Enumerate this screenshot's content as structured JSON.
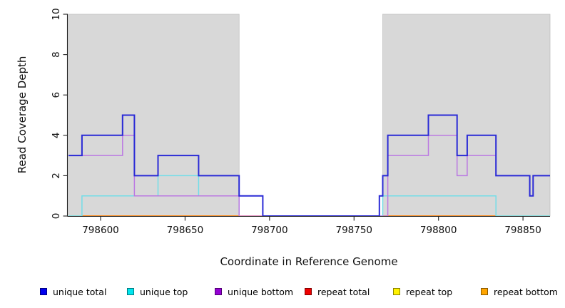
{
  "chart_data": {
    "type": "line",
    "subtype": "step-coverage-plot",
    "title": "",
    "xlabel": "Coordinate in Reference Genome",
    "ylabel": "Read Coverage Depth",
    "xlim": [
      798581,
      798866
    ],
    "ylim": [
      0,
      10
    ],
    "xticks": [
      798600,
      798650,
      798700,
      798750,
      798800,
      798850
    ],
    "yticks": [
      0,
      2,
      4,
      6,
      8,
      10
    ],
    "grid": false,
    "legend_position": "bottom",
    "shaded_regions": [
      {
        "x0": 798581,
        "x1": 798682,
        "fill": "#d8d8d8",
        "stroke": "#c0c0c0"
      },
      {
        "x0": 798767,
        "x1": 798866,
        "fill": "#d8d8d8",
        "stroke": "#c0c0c0"
      }
    ],
    "baseline_segments": [
      {
        "x0": 798581,
        "x1": 798589,
        "color": "#98d89a",
        "width": 1.5,
        "z": 2
      },
      {
        "x0": 798589,
        "x1": 798682,
        "color": "#ff8c1a",
        "width": 2,
        "z": 2
      },
      {
        "x0": 798767,
        "x1": 798834,
        "color": "#ff8c1a",
        "width": 2,
        "z": 2
      },
      {
        "x0": 798834,
        "x1": 798866,
        "color": "#98d89a",
        "width": 1.5,
        "z": 2
      },
      {
        "x0": 798682,
        "x1": 798696,
        "color": "#ef82b0",
        "width": 1.5,
        "z": 5
      }
    ],
    "series": [
      {
        "name": "unique total",
        "legend_color": "#0000ee",
        "line_color": "#2a2ad6",
        "width": 2,
        "z": 6,
        "draw": true,
        "steps": [
          [
            798581,
            3
          ],
          [
            798589,
            4
          ],
          [
            798613,
            5
          ],
          [
            798620,
            2
          ],
          [
            798634,
            3
          ],
          [
            798658,
            2
          ],
          [
            798682,
            1
          ],
          [
            798696,
            0
          ],
          [
            798765,
            1
          ],
          [
            798767,
            2
          ],
          [
            798770,
            4
          ],
          [
            798794,
            5
          ],
          [
            798811,
            3
          ],
          [
            798817,
            4
          ],
          [
            798834,
            2
          ],
          [
            798854,
            1
          ],
          [
            798856,
            2
          ],
          [
            798866,
            2
          ]
        ]
      },
      {
        "name": "unique top",
        "legend_color": "#00e5ee",
        "line_color": "#72dde8",
        "width": 1.5,
        "z": 3,
        "draw": true,
        "steps": [
          [
            798581,
            0
          ],
          [
            798589,
            1
          ],
          [
            798634,
            2
          ],
          [
            798658,
            1
          ],
          [
            798682,
            0
          ],
          [
            798767,
            1
          ],
          [
            798834,
            0
          ],
          [
            798866,
            0
          ]
        ]
      },
      {
        "name": "unique bottom",
        "legend_color": "#9400d3",
        "line_color": "#bb79e2",
        "width": 1.5,
        "z": 4,
        "draw": true,
        "steps": [
          [
            798581,
            3
          ],
          [
            798613,
            4
          ],
          [
            798620,
            1
          ],
          [
            798682,
            0
          ],
          [
            798770,
            3
          ],
          [
            798794,
            4
          ],
          [
            798811,
            2
          ],
          [
            798817,
            3
          ],
          [
            798834,
            2
          ],
          [
            798854,
            1
          ],
          [
            798856,
            2
          ],
          [
            798866,
            2
          ]
        ]
      },
      {
        "name": "repeat total",
        "legend_color": "#ee0000",
        "line_color": "#ee0000",
        "width": 1.5,
        "z": 1,
        "draw": false,
        "steps": [
          [
            798581,
            0
          ],
          [
            798866,
            0
          ]
        ]
      },
      {
        "name": "repeat top",
        "legend_color": "#fff200",
        "line_color": "#fff200",
        "width": 1.5,
        "z": 1,
        "draw": false,
        "steps": [
          [
            798581,
            0
          ],
          [
            798866,
            0
          ]
        ]
      },
      {
        "name": "repeat bottom",
        "legend_color": "#ffa500",
        "line_color": "#ff8c1a",
        "width": 2,
        "z": 1,
        "draw": false,
        "steps": [
          [
            798581,
            0
          ],
          [
            798866,
            0
          ]
        ]
      }
    ]
  },
  "legend": {
    "items": [
      {
        "label": "unique total",
        "color": "#0000ee"
      },
      {
        "label": "unique top",
        "color": "#00e5ee"
      },
      {
        "label": "unique bottom",
        "color": "#9400d3"
      },
      {
        "label": "repeat total",
        "color": "#ee0000"
      },
      {
        "label": "repeat top",
        "color": "#fff200"
      },
      {
        "label": "repeat bottom",
        "color": "#ffa500"
      }
    ]
  }
}
